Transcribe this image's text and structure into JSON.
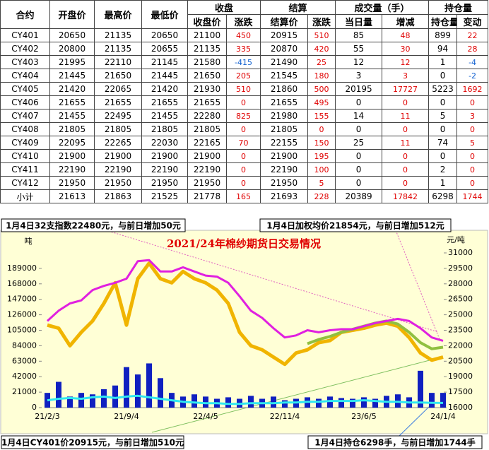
{
  "table": {
    "header_top": [
      "合约",
      "开盘价",
      "最高价",
      "最低价",
      "收盘",
      "结算",
      "成交量（手）",
      "持仓量"
    ],
    "header_sub": [
      "收盘价",
      "涨跌",
      "结算价",
      "涨跌",
      "当日量",
      "增减",
      "持仓量",
      "变动"
    ],
    "rows": [
      [
        "CY401",
        20650,
        21135,
        20650,
        21100,
        450,
        20915,
        510,
        85,
        48,
        899,
        22
      ],
      [
        "CY402",
        20800,
        21135,
        20655,
        21135,
        335,
        20870,
        420,
        55,
        30,
        94,
        28
      ],
      [
        "CY403",
        21995,
        22110,
        21145,
        21580,
        -415,
        21490,
        25,
        12,
        12,
        1,
        -4
      ],
      [
        "CY404",
        21445,
        21650,
        21445,
        21650,
        205,
        21545,
        180,
        3,
        3,
        0,
        -2
      ],
      [
        "CY405",
        21420,
        22065,
        21420,
        21930,
        510,
        21860,
        500,
        20195,
        17727,
        5223,
        1692
      ],
      [
        "CY406",
        21655,
        21655,
        21655,
        21655,
        0,
        21655,
        495,
        0,
        0,
        0,
        0
      ],
      [
        "CY407",
        21455,
        22495,
        21455,
        22280,
        825,
        21980,
        155,
        14,
        11,
        5,
        3
      ],
      [
        "CY408",
        21805,
        21805,
        21805,
        21805,
        0,
        21805,
        0,
        0,
        0,
        0,
        0
      ],
      [
        "CY409",
        22095,
        22265,
        22030,
        22165,
        70,
        22155,
        150,
        25,
        11,
        74,
        5
      ],
      [
        "CY410",
        21900,
        21900,
        21900,
        21900,
        0,
        21900,
        195,
        0,
        0,
        0,
        0
      ],
      [
        "CY411",
        22190,
        22190,
        22190,
        22190,
        0,
        22190,
        100,
        0,
        0,
        2,
        0
      ],
      [
        "CY412",
        21950,
        21950,
        21950,
        21950,
        0,
        21950,
        5,
        0,
        0,
        1,
        0
      ],
      [
        "小计",
        21613,
        21863,
        21525,
        21778,
        165,
        21693,
        228,
        20389,
        17842,
        6298,
        1744
      ]
    ]
  },
  "chart_data": {
    "type": "combo",
    "title": "2021/24年棉纱期货日交易情况",
    "y_label": "吨",
    "y2_label": "元/吨",
    "annotations": [
      "1月4日32支指数22480元，与前日增加50元",
      "1月4日加权均价21854元，与前日增加512元",
      "1月4日CY401价20915元，与前日增加510元",
      "1月4日持仓6298手，与前日增加1744手"
    ],
    "categories": [
      "21/2/3",
      null,
      null,
      null,
      null,
      null,
      null,
      "21/9/4",
      null,
      null,
      null,
      null,
      null,
      null,
      "22/4/5",
      null,
      null,
      null,
      null,
      null,
      null,
      "22/11/4",
      null,
      null,
      null,
      null,
      null,
      null,
      "23/6/5",
      null,
      null,
      null,
      null,
      null,
      null,
      "24/1/4"
    ],
    "ylim": [
      0,
      210000
    ],
    "yticks": [
      0,
      21000,
      42000,
      63000,
      84000,
      105000,
      126000,
      147000,
      168000,
      189000
    ],
    "y2lim": [
      16000,
      31000
    ],
    "y2ticks": [
      16000,
      17500,
      19000,
      20500,
      22000,
      23500,
      25000,
      26500,
      28000,
      29500,
      31000
    ],
    "series": [
      {
        "type": "bar",
        "color": "#1020c0",
        "values": [
          20000,
          35000,
          15000,
          20000,
          18000,
          25000,
          30000,
          55000,
          45000,
          60000,
          40000,
          20000,
          15000,
          18000,
          15000,
          12000,
          14000,
          12000,
          16000,
          12000,
          15000,
          10000,
          12000,
          14000,
          12000,
          15000,
          13000,
          12000,
          14000,
          12000,
          16000,
          18000,
          14000,
          50000,
          20000,
          20000
        ]
      },
      {
        "type": "line",
        "color": "#30e8f0",
        "width": 3,
        "values": [
          10000,
          12000,
          13000,
          12000,
          14000,
          15000,
          13000,
          15000,
          16000,
          14000,
          12000,
          10000,
          8000,
          7000,
          6000,
          6000,
          5000,
          5000,
          6000,
          6000,
          6000,
          7000,
          7000,
          8000,
          8000,
          9000,
          9000,
          9000,
          10000,
          9000,
          8000,
          8000,
          7000,
          7000,
          6500,
          6298
        ]
      },
      {
        "type": "line",
        "axis": "y2",
        "color": "#f0b400",
        "width": 5,
        "values": [
          24000,
          23700,
          22000,
          23300,
          24400,
          26100,
          28100,
          24000,
          28500,
          30000,
          28500,
          28100,
          29200,
          28500,
          28100,
          27400,
          26100,
          23300,
          22000,
          21600,
          20900,
          20200,
          21300,
          21600,
          22300,
          22500,
          23300,
          23500,
          23700,
          24000,
          24200,
          23900,
          22800,
          21300,
          20600,
          20900
        ]
      },
      {
        "type": "line",
        "axis": "y2",
        "color": "#90c040",
        "width": 4,
        "values": [
          null,
          null,
          null,
          null,
          null,
          null,
          null,
          null,
          null,
          null,
          null,
          null,
          null,
          null,
          null,
          null,
          null,
          null,
          null,
          null,
          null,
          null,
          null,
          22200,
          22600,
          22900,
          23300,
          23600,
          23900,
          24200,
          24400,
          24100,
          23300,
          22300,
          21700,
          21854
        ]
      },
      {
        "type": "line",
        "axis": "y2",
        "color": "#e020e0",
        "width": 3,
        "values": [
          24400,
          25400,
          26100,
          26400,
          27400,
          27800,
          28100,
          28500,
          30200,
          30300,
          29200,
          29200,
          29600,
          29200,
          28800,
          28700,
          28100,
          26800,
          25400,
          24700,
          23700,
          22800,
          23000,
          23500,
          23300,
          23500,
          23600,
          23600,
          23900,
          24200,
          24400,
          24600,
          24400,
          23700,
          22800,
          22480
        ]
      }
    ]
  }
}
